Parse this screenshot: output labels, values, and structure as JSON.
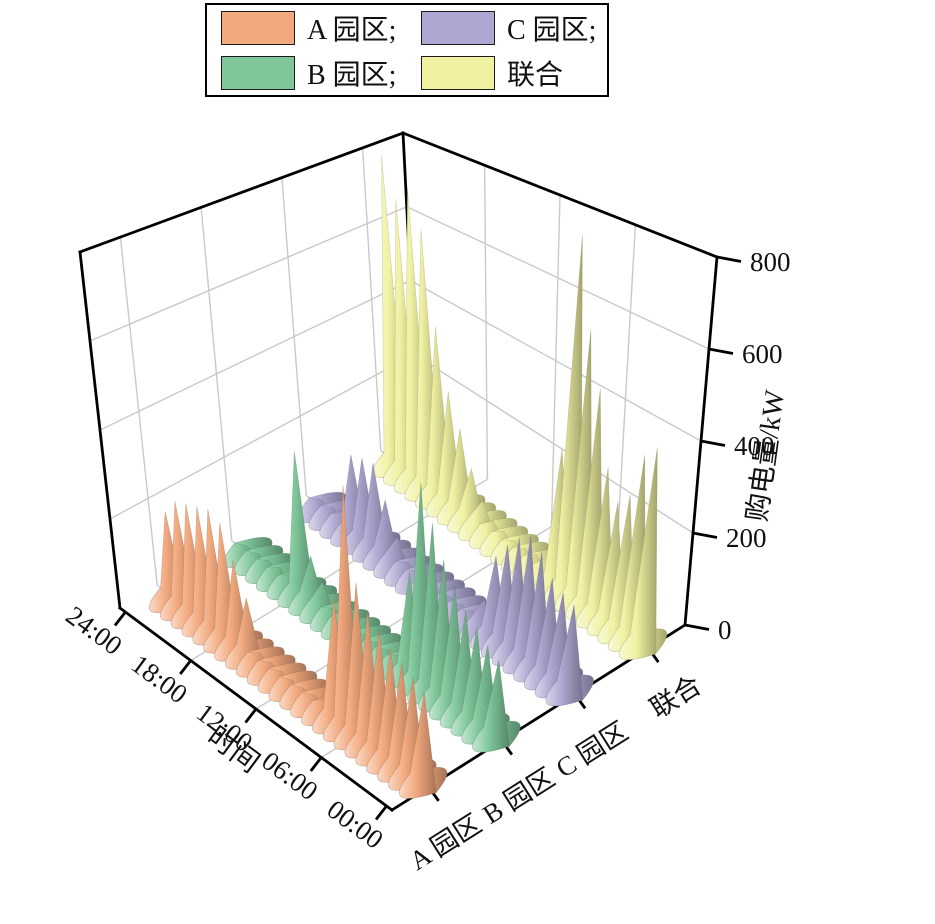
{
  "legend": {
    "items": [
      {
        "label": "A 园区;",
        "color": "#F3A97E"
      },
      {
        "label": "C 园区;",
        "color": "#ACA6D0"
      },
      {
        "label": "B 园区;",
        "color": "#7FC79A"
      },
      {
        "label": "联合",
        "color": "#F0F1A1"
      }
    ]
  },
  "chart_data": {
    "type": "3d-spike",
    "title": "",
    "xlabel": "时间",
    "zlabel": "购电量/kW",
    "z_ticks": [
      0,
      200,
      400,
      600,
      800
    ],
    "zlim": [
      0,
      800
    ],
    "x_tick_hours": [
      24,
      18,
      12,
      6,
      0
    ],
    "x_ticklabels": [
      "24:00",
      "18:00",
      "12:00",
      "06:00",
      "00:00"
    ],
    "categories": [
      "A 园区",
      "B 园区",
      "C 园区",
      "联合"
    ],
    "hours": [
      0,
      1,
      2,
      3,
      4,
      5,
      6,
      7,
      8,
      9,
      10,
      11,
      12,
      13,
      14,
      15,
      16,
      17,
      18,
      19,
      20,
      21,
      22,
      23
    ],
    "series": [
      {
        "name": "A 园区",
        "color": "#F3A97E",
        "values": [
          170,
          185,
          200,
          215,
          235,
          260,
          300,
          480,
          240,
          25,
          15,
          12,
          12,
          14,
          16,
          20,
          120,
          185,
          250,
          265,
          255,
          245,
          235,
          195
        ]
      },
      {
        "name": "B 园区",
        "color": "#7FC79A",
        "values": [
          150,
          165,
          185,
          205,
          240,
          280,
          340,
          410,
          210,
          20,
          14,
          12,
          12,
          14,
          16,
          18,
          60,
          100,
          320,
          25,
          20,
          18,
          16,
          15
        ]
      },
      {
        "name": "C 园区",
        "color": "#ACA6D0",
        "values": [
          175,
          185,
          200,
          240,
          260,
          240,
          210,
          170,
          60,
          18,
          14,
          12,
          12,
          14,
          16,
          20,
          60,
          130,
          200,
          195,
          185,
          30,
          20,
          18
        ]
      },
      {
        "name": "联合",
        "color": "#F0F1A1",
        "values": [
          420,
          390,
          290,
          260,
          320,
          480,
          600,
          800,
          300,
          35,
          25,
          20,
          20,
          25,
          30,
          60,
          120,
          200,
          275,
          420,
          650,
          740,
          700,
          800
        ]
      }
    ]
  }
}
